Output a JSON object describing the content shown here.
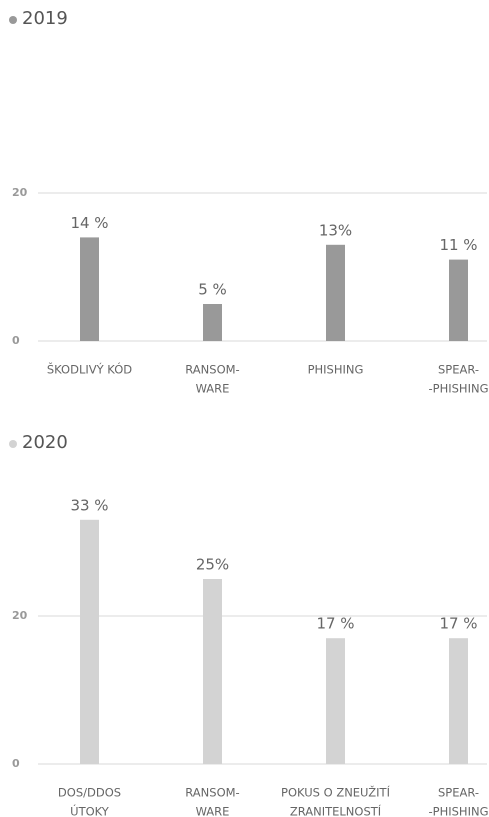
{
  "chart_data": [
    {
      "type": "bar",
      "title": "2019",
      "color": "#999999",
      "categories": [
        [
          "ŠKODLIVÝ KÓD"
        ],
        [
          "RANSOM-",
          "WARE"
        ],
        [
          "PHISHING"
        ],
        [
          "SPEAR-",
          "-PHISHING"
        ]
      ],
      "values": [
        14,
        5,
        13,
        11
      ],
      "value_labels": [
        "14 %",
        "5 %",
        "13%",
        "11 %"
      ],
      "ylim": [
        0,
        40
      ],
      "yticks": [
        0,
        20
      ],
      "grid": true
    },
    {
      "type": "bar",
      "title": "2020",
      "color": "#d3d3d3",
      "categories": [
        [
          "DOS/DDOS",
          "ÚTOKY"
        ],
        [
          "RANSOM-",
          "WARE"
        ],
        [
          "POKUS O ZNEUŽITÍ",
          "ZRANITELNOSTÍ"
        ],
        [
          "SPEAR-",
          "-PHISHING"
        ]
      ],
      "values": [
        33,
        25,
        17,
        17
      ],
      "value_labels": [
        "33 %",
        "25%",
        "17 %",
        "17 %"
      ],
      "ylim": [
        0,
        40
      ],
      "yticks": [
        0,
        20
      ],
      "grid": true
    }
  ]
}
